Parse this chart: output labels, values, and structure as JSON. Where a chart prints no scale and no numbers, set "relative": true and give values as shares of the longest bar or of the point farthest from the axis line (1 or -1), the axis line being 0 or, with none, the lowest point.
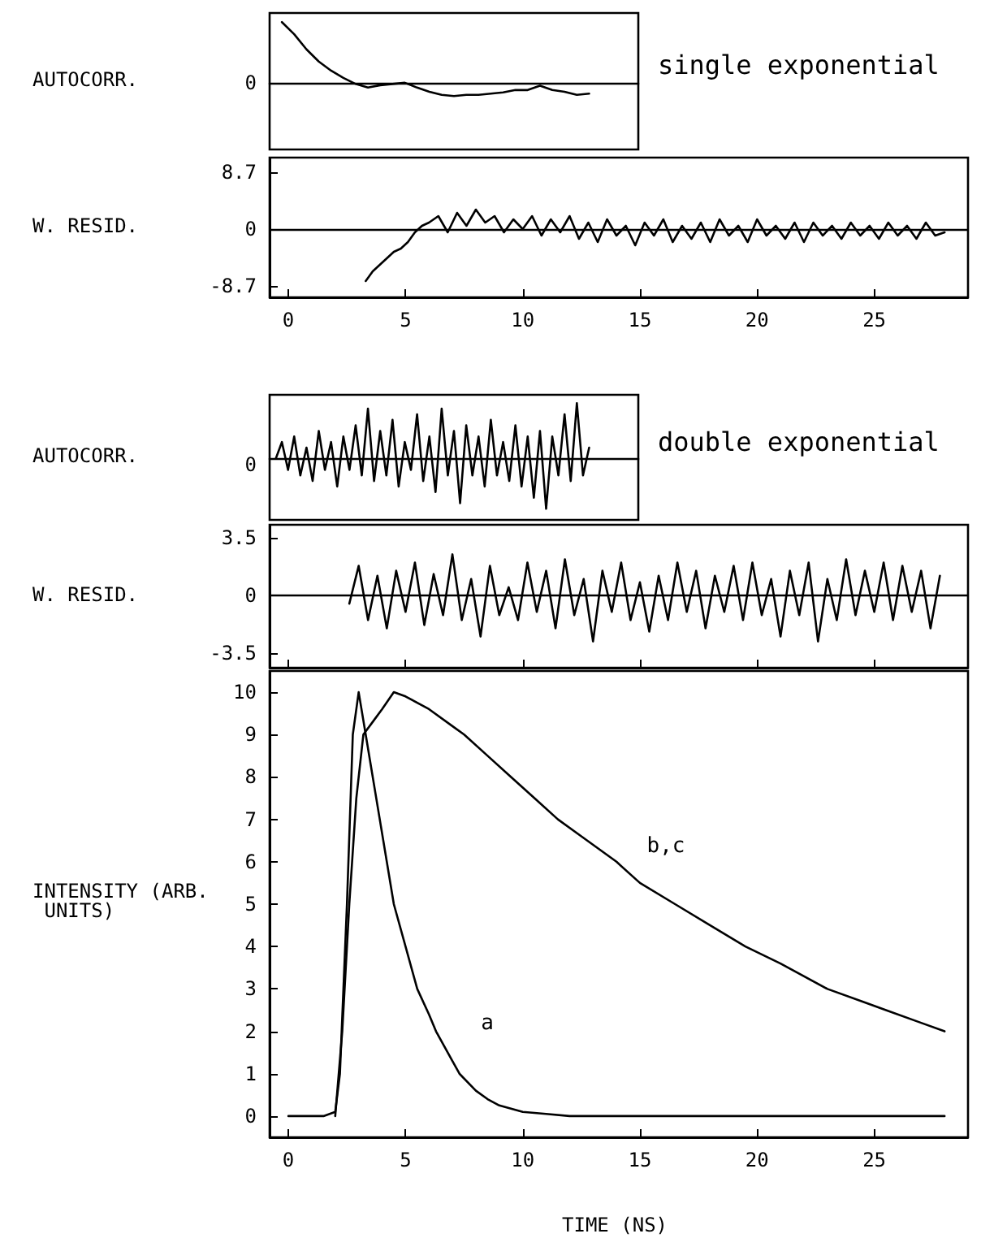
{
  "chart_data": [
    {
      "type": "line",
      "ylabel": "AUTOCORR.",
      "relative": true,
      "tick_labels": false,
      "marker": "none",
      "line_style": "solid",
      "grid": false,
      "annotations": [
        "0",
        "single exponential"
      ],
      "categories": [
        null,
        null,
        null,
        null,
        null,
        null,
        null,
        null,
        null,
        null,
        null,
        null,
        null,
        null,
        null,
        null,
        null,
        null,
        null,
        null,
        null,
        null,
        null,
        null,
        null,
        null,
        null,
        null,
        null,
        null,
        null
      ],
      "series": [
        {
          "color": "#000000",
          "values": [
            null,
            1.0,
            0.8,
            0.55,
            0.35,
            0.2,
            0.08,
            -0.02,
            -0.08,
            -0.04,
            -0.02,
            0,
            -0.08,
            -0.15,
            -0.2,
            -0.22,
            -0.2,
            -0.2,
            -0.18,
            -0.16,
            -0.12,
            -0.12,
            -0.05,
            -0.12,
            -0.15,
            -0.2,
            -0.18,
            null,
            null,
            null,
            null
          ]
        }
      ]
    },
    {
      "type": "line",
      "ylabel": "W. RESID.",
      "xlim": [
        -0.8,
        29
      ],
      "xticks": [
        0,
        5,
        10,
        15,
        20,
        25
      ],
      "ylim": [
        -10.5,
        11
      ],
      "yticks": [
        8.7,
        0,
        -8.7
      ],
      "marker": "none",
      "line_style": "solid",
      "grid": false,
      "ref_lines": [
        {
          "axis": "y",
          "value": 0,
          "label": null
        }
      ],
      "series": [
        {
          "color": "#000000",
          "x": [
            3.3,
            3.6,
            3.9,
            4.2,
            4.5,
            4.8,
            5.1,
            5.4,
            5.7,
            6.0,
            6.4,
            6.8,
            7.2,
            7.6,
            8.0,
            8.4,
            8.8,
            9.2,
            9.6,
            10,
            10.4,
            10.8,
            11.2,
            11.6,
            12,
            12.4,
            12.8,
            13.2,
            13.6,
            14,
            14.4,
            14.8,
            15.2,
            15.6,
            16,
            16.4,
            16.8,
            17.2,
            17.6,
            18,
            18.4,
            18.8,
            19.2,
            19.6,
            20,
            20.4,
            20.8,
            21.2,
            21.6,
            22,
            22.4,
            22.8,
            23.2,
            23.6,
            24,
            24.4,
            24.8,
            25.2,
            25.6,
            26,
            26.4,
            26.8,
            27.2,
            27.6,
            28
          ],
          "values": [
            -8,
            -6.5,
            -5.5,
            -4.5,
            -3.5,
            -3,
            -2,
            -0.5,
            0.5,
            1,
            2,
            -0.5,
            2.5,
            0.5,
            3,
            1,
            2,
            -0.5,
            1.5,
            0,
            2,
            -1,
            1.5,
            -0.5,
            2,
            -1.5,
            1,
            -2,
            1.5,
            -1,
            0.5,
            -2.5,
            1,
            -1,
            1.5,
            -2,
            0.5,
            -1.5,
            1,
            -2,
            1.5,
            -1,
            0.5,
            -2,
            1.5,
            -1,
            0.5,
            -1.5,
            1,
            -2,
            1,
            -1,
            0.5,
            -1.5,
            1,
            -1,
            0.5,
            -1.5,
            1,
            -1,
            0.5,
            -1.5,
            1,
            -1,
            -0.5
          ]
        }
      ]
    },
    {
      "type": "line",
      "ylabel": "AUTOCORR.",
      "relative": true,
      "tick_labels": false,
      "marker": "none",
      "line_style": "solid",
      "grid": false,
      "annotations": [
        "0",
        "double exponential"
      ],
      "categories": [
        null,
        null,
        null,
        null,
        null,
        null,
        null,
        null,
        null,
        null,
        null,
        null,
        null,
        null,
        null,
        null,
        null,
        null,
        null,
        null,
        null,
        null,
        null,
        null,
        null,
        null,
        null,
        null,
        null,
        null,
        null,
        null,
        null,
        null,
        null,
        null,
        null,
        null,
        null,
        null,
        null,
        null,
        null,
        null,
        null,
        null,
        null,
        null,
        null,
        null,
        null,
        null,
        null,
        null,
        null,
        null,
        null,
        null,
        null,
        null,
        null
      ],
      "series": [
        {
          "color": "#000000",
          "values": [
            null,
            0,
            0.3,
            -0.2,
            0.4,
            -0.3,
            0.2,
            -0.4,
            0.5,
            -0.2,
            0.3,
            -0.5,
            0.4,
            -0.2,
            0.6,
            -0.3,
            0.9,
            -0.4,
            0.5,
            -0.3,
            0.7,
            -0.5,
            0.3,
            -0.2,
            0.8,
            -0.4,
            0.4,
            -0.6,
            0.9,
            -0.3,
            0.5,
            -0.8,
            0.6,
            -0.3,
            0.4,
            -0.5,
            0.7,
            -0.3,
            0.3,
            -0.4,
            0.6,
            -0.5,
            0.4,
            -0.7,
            0.5,
            -0.9,
            0.4,
            -0.3,
            0.8,
            -0.4,
            1.0,
            -0.3,
            0.2,
            null,
            null,
            null,
            null,
            null,
            null,
            null,
            null
          ]
        }
      ]
    },
    {
      "type": "line",
      "ylabel": "W. RESID.",
      "xlim": [
        -0.8,
        29
      ],
      "xticks": [
        0,
        5,
        10,
        15,
        20,
        25
      ],
      "ylim": [
        -4.4,
        4.3
      ],
      "yticks": [
        3.5,
        0,
        -3.5
      ],
      "tick_labels": "y",
      "marker": "none",
      "line_style": "solid",
      "grid": false,
      "ref_lines": [
        {
          "axis": "y",
          "value": 0,
          "label": null
        }
      ],
      "series": [
        {
          "color": "#000000",
          "x": [
            2.6,
            3.0,
            3.4,
            3.8,
            4.2,
            4.6,
            5.0,
            5.4,
            5.8,
            6.2,
            6.6,
            7.0,
            7.4,
            7.8,
            8.2,
            8.6,
            9.0,
            9.4,
            9.8,
            10.2,
            10.6,
            11.0,
            11.4,
            11.8,
            12.2,
            12.6,
            13.0,
            13.4,
            13.8,
            14.2,
            14.6,
            15.0,
            15.4,
            15.8,
            16.2,
            16.6,
            17.0,
            17.4,
            17.8,
            18.2,
            18.6,
            19.0,
            19.4,
            19.8,
            20.2,
            20.6,
            21.0,
            21.4,
            21.8,
            22.2,
            22.6,
            23.0,
            23.4,
            23.8,
            24.2,
            24.6,
            25.0,
            25.4,
            25.8,
            26.2,
            26.6,
            27.0,
            27.4,
            27.8
          ],
          "values": [
            -0.5,
            1.8,
            -1.5,
            1.2,
            -2,
            1.5,
            -1,
            2,
            -1.8,
            1.3,
            -1.2,
            2.5,
            -1.5,
            1,
            -2.5,
            1.8,
            -1.2,
            0.5,
            -1.5,
            2,
            -1,
            1.5,
            -2,
            2.2,
            -1.2,
            1,
            -2.8,
            1.5,
            -1,
            2,
            -1.5,
            0.8,
            -2.2,
            1.2,
            -1.5,
            2,
            -1,
            1.5,
            -2,
            1.2,
            -1,
            1.8,
            -1.5,
            2,
            -1.2,
            1,
            -2.5,
            1.5,
            -1.2,
            2,
            -2.8,
            1,
            -1.5,
            2.2,
            -1.2,
            1.5,
            -1,
            2,
            -1.5,
            1.8,
            -1,
            1.5,
            -2,
            1.2
          ]
        }
      ]
    },
    {
      "type": "line",
      "ylabel": "INTENSITY (ARB. UNITS)",
      "xlabel": "TIME (NS)",
      "xlim": [
        -0.8,
        29
      ],
      "xticks": [
        0,
        5,
        10,
        15,
        20,
        25
      ],
      "ylim": [
        -0.5,
        10.5
      ],
      "yticks": [
        0,
        1,
        2,
        3,
        4,
        5,
        6,
        7,
        8,
        9,
        10
      ],
      "marker": "none",
      "line_style": "solid",
      "grid": false,
      "annotations": [
        "a",
        "b,c"
      ],
      "series": [
        {
          "color": "#000000",
          "x": [
            0,
            1.5,
            2.0,
            2.2,
            2.5,
            2.75,
            3.0,
            3.3,
            3.6,
            3.9,
            4.2,
            4.5,
            5.0,
            5.5,
            6.0,
            6.3,
            7.0,
            7.3,
            8.0,
            8.5,
            9.0,
            10,
            11,
            12,
            15,
            20,
            25,
            28
          ],
          "values": [
            0,
            0,
            0.1,
            1,
            5,
            9,
            10,
            9,
            8,
            7,
            6,
            5,
            4,
            3,
            2.4,
            2,
            1.3,
            1,
            0.6,
            0.4,
            0.25,
            0.1,
            0.05,
            0,
            0,
            0,
            0,
            0
          ]
        },
        {
          "color": "#000000",
          "x": [
            2.0,
            2.3,
            2.6,
            2.9,
            3.2,
            3.6,
            4.0,
            4.5,
            5.0,
            6.0,
            7.0,
            7.5,
            8.5,
            9.5,
            10.5,
            11.5,
            12.5,
            14,
            15,
            16.5,
            18,
            19.5,
            21,
            23,
            24.5,
            25.5,
            27,
            28
          ],
          "values": [
            0,
            2,
            5,
            7.5,
            9,
            9.3,
            9.6,
            10,
            9.9,
            9.6,
            9.2,
            9,
            8.5,
            8,
            7.5,
            7,
            6.6,
            6,
            5.5,
            5,
            4.5,
            4,
            3.6,
            3,
            2.7,
            2.5,
            2.2,
            2
          ]
        }
      ]
    }
  ]
}
